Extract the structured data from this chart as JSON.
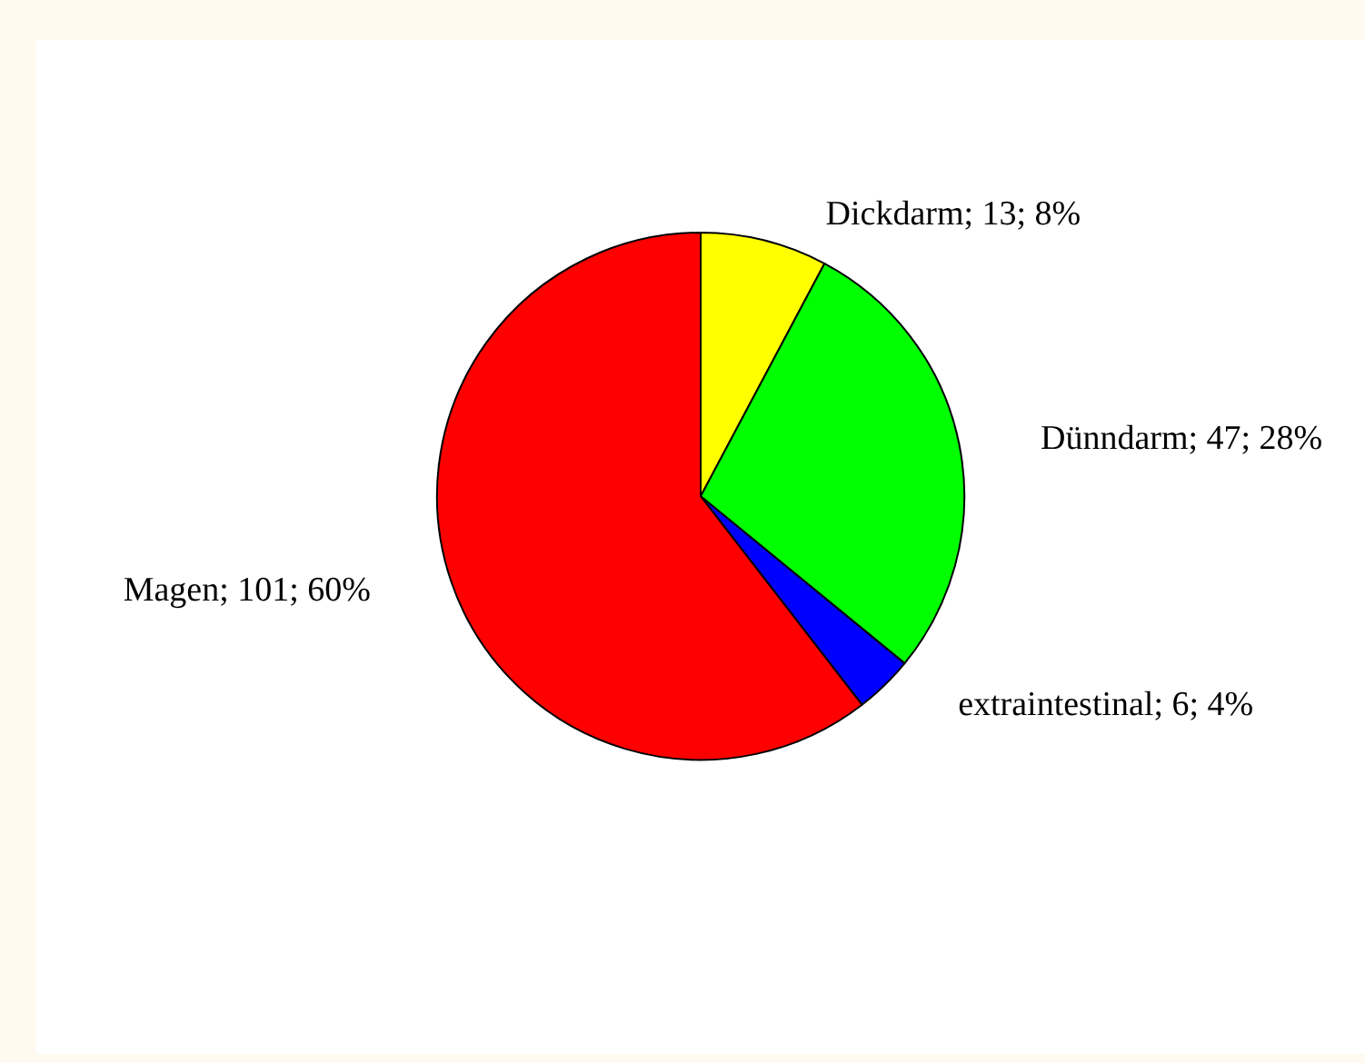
{
  "chart_data": {
    "type": "pie",
    "categories": [
      "Dickdarm",
      "Dünndarm",
      "extraintestinal",
      "Magen"
    ],
    "values": [
      13,
      47,
      6,
      101
    ],
    "colors": [
      "#ffff00",
      "#00ff00",
      "#0000ff",
      "#ff0000"
    ],
    "value_labels": [
      "13; 8%",
      "47; 28%",
      "6; 4%",
      "101; 60%"
    ],
    "legend": false
  }
}
